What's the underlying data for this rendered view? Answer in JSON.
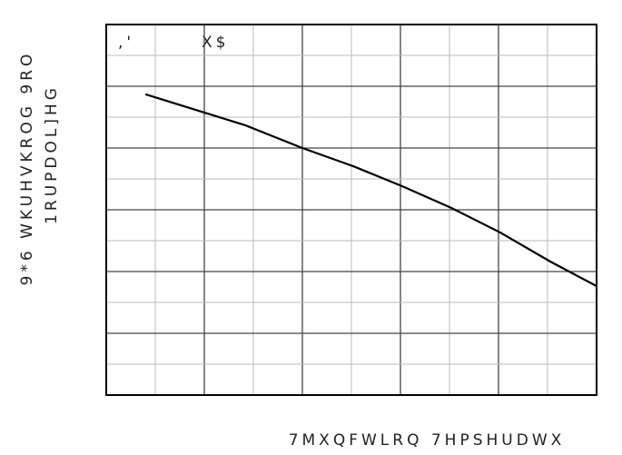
{
  "chart_data": {
    "type": "line",
    "ylabel_lines": [
      "9*6 WKUHVKROG 9RO",
      "1RUPDOL]HG"
    ],
    "xlabel": "7MXQFWLRQ 7HPSHUDWX",
    "annotations": [
      ",'",
      "X$"
    ],
    "x": [
      0.8,
      2,
      2.83,
      4,
      5.04,
      6.04,
      7.04,
      8.04,
      9.06,
      10
    ],
    "series": [
      {
        "color": "#000000",
        "values": [
          9.74,
          9.15,
          8.74,
          8.0,
          7.41,
          6.76,
          6.06,
          5.26,
          4.32,
          3.53
        ]
      }
    ],
    "xlim": [
      0,
      10
    ],
    "ylim": [
      0,
      12
    ],
    "xticks": [
      0,
      1,
      2,
      3,
      4,
      5,
      6,
      7,
      8,
      9,
      10
    ],
    "yticks": [
      0,
      1,
      2,
      3,
      4,
      5,
      6,
      7,
      8,
      9,
      10,
      11,
      12
    ],
    "grid": true
  }
}
